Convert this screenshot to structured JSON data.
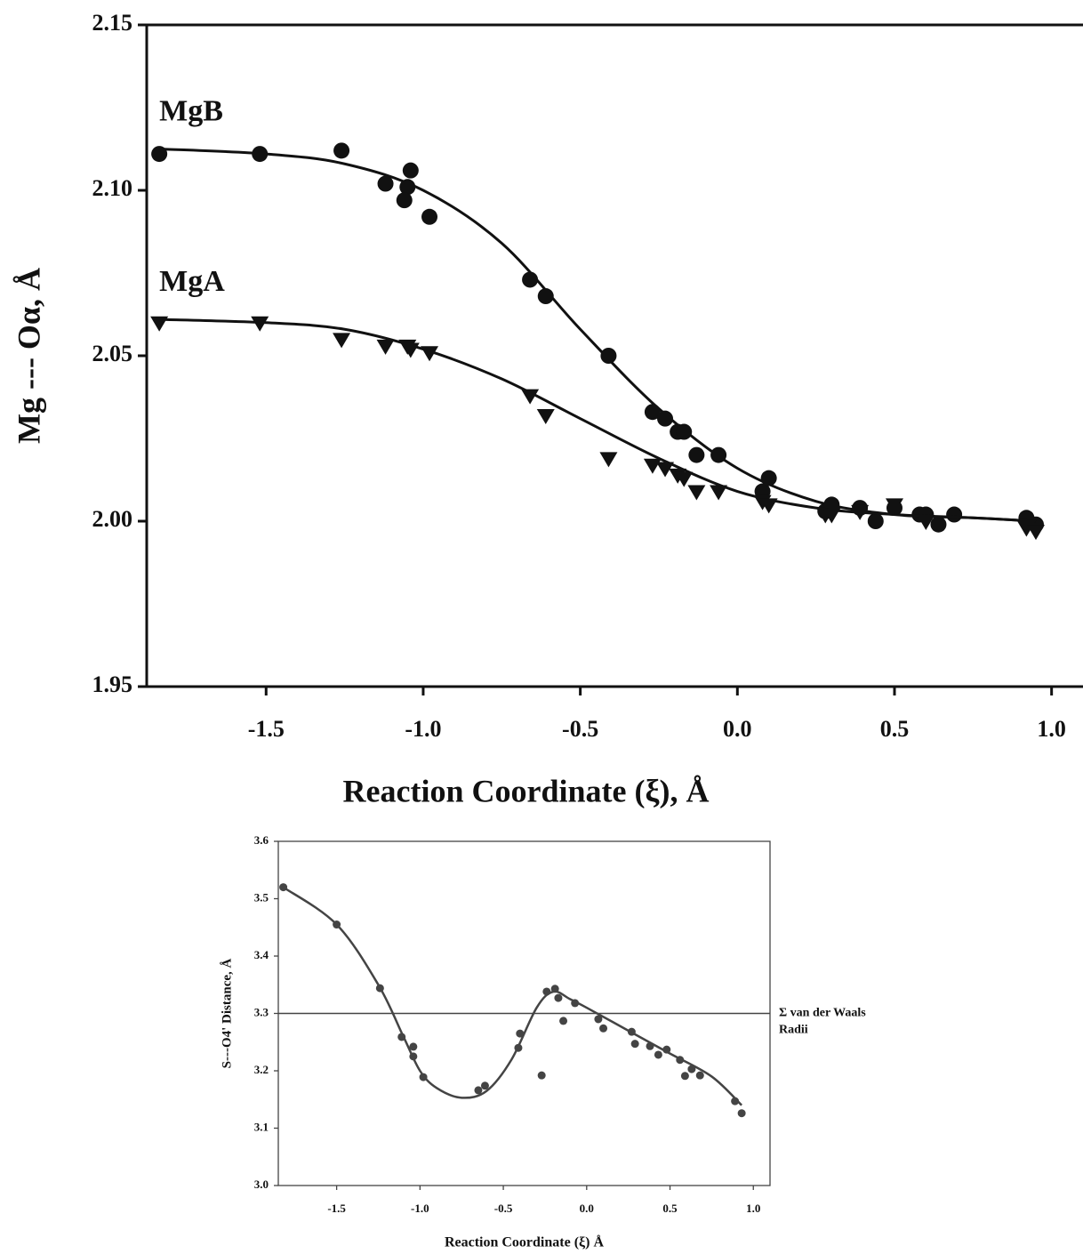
{
  "chart_data": [
    {
      "type": "scatter",
      "x_label": "Reaction Coordinate (ξ), Å",
      "y_label": "Mg --- Oα, Å",
      "xlim": [
        -1.88,
        1.1
      ],
      "ylim": [
        1.95,
        2.15
      ],
      "xticks": [
        {
          "value": -1.5,
          "label": "-1.5"
        },
        {
          "value": -1,
          "label": "-1.0"
        },
        -0.5,
        {
          "value": 0,
          "label": "0.0"
        },
        0.5,
        {
          "value": 1,
          "label": "1.0"
        }
      ],
      "yticks": [
        1.95,
        {
          "value": 2,
          "label": "2.00"
        },
        2.05,
        {
          "value": 2.1,
          "label": "2.10"
        },
        2.15
      ],
      "grid": false,
      "series": [
        {
          "name": "MgB",
          "marker": "circle",
          "color": "#111111",
          "x": [
            -1.84,
            -1.52,
            -1.26,
            -1.12,
            -1.05,
            -1.04,
            -1.06,
            -0.98,
            -0.66,
            -0.61,
            -0.41,
            -0.27,
            -0.23,
            -0.19,
            -0.17,
            -0.13,
            -0.06,
            0.08,
            0.1,
            0.28,
            0.3,
            0.39,
            0.44,
            0.5,
            0.58,
            0.6,
            0.64,
            0.69,
            0.92,
            0.95
          ],
          "values": [
            2.111,
            2.111,
            2.112,
            2.102,
            2.101,
            2.106,
            2.097,
            2.092,
            2.073,
            2.068,
            2.05,
            2.033,
            2.031,
            2.027,
            2.027,
            2.02,
            2.02,
            2.009,
            2.013,
            2.003,
            2.005,
            2.004,
            2.0,
            2.004,
            2.002,
            2.002,
            1.999,
            2.002,
            2.001,
            1.999
          ],
          "fit": {
            "x": [
              -1.84,
              -1.5,
              -1.25,
              -1.0,
              -0.75,
              -0.5,
              -0.25,
              0,
              0.25,
              0.5,
              0.75,
              0.95
            ],
            "values": [
              2.1125,
              2.111,
              2.108,
              2.1,
              2.084,
              2.058,
              2.034,
              2.016,
              2.006,
              2.002,
              2.001,
              2.0
            ]
          }
        },
        {
          "name": "MgA",
          "marker": "triangle-down",
          "color": "#111111",
          "x": [
            -1.84,
            -1.52,
            -1.26,
            -1.12,
            -1.05,
            -1.04,
            -0.98,
            -0.66,
            -0.61,
            -0.41,
            -0.27,
            -0.23,
            -0.19,
            -0.17,
            -0.13,
            -0.06,
            0.08,
            0.1,
            0.28,
            0.3,
            0.39,
            0.5,
            0.6,
            0.92,
            0.95
          ],
          "values": [
            2.06,
            2.06,
            2.055,
            2.053,
            2.053,
            2.052,
            2.051,
            2.038,
            2.032,
            2.019,
            2.017,
            2.016,
            2.014,
            2.013,
            2.009,
            2.009,
            2.006,
            2.005,
            2.002,
            2.002,
            2.003,
            2.005,
            2.0,
            1.998,
            1.997
          ],
          "fit": {
            "x": [
              -1.84,
              -1.5,
              -1.25,
              -1.0,
              -0.75,
              -0.5,
              -0.25,
              0,
              0.25,
              0.5,
              0.75,
              0.95
            ],
            "values": [
              2.061,
              2.06,
              2.058,
              2.052,
              2.043,
              2.031,
              2.019,
              2.009,
              2.004,
              2.002,
              2.001,
              2.0
            ]
          }
        }
      ]
    },
    {
      "type": "scatter",
      "x_label": "Reaction Coordinate (ξ) Å",
      "y_label": "S---O4' Distance, Å",
      "xlim": [
        -1.85,
        1.1
      ],
      "ylim": [
        3.0,
        3.6
      ],
      "xticks": [
        {
          "value": -1.5,
          "label": "-1.5"
        },
        {
          "value": -1,
          "label": "-1.0"
        },
        -0.5,
        {
          "value": 0,
          "label": "0.0"
        },
        0.5,
        {
          "value": 1,
          "label": "1.0"
        }
      ],
      "yticks": [
        {
          "value": 3,
          "label": "3.0"
        },
        3.1,
        3.2,
        3.3,
        3.4,
        3.5,
        3.6
      ],
      "grid": false,
      "reference_line": {
        "value": 3.3,
        "label": [
          "Σ van der Waals",
          "Radii"
        ]
      },
      "series": [
        {
          "marker": "circle",
          "color": "#444444",
          "x": [
            -1.82,
            -1.5,
            -1.24,
            -1.11,
            -1.04,
            -1.04,
            -0.98,
            -0.65,
            -0.61,
            -0.41,
            -0.4,
            -0.27,
            -0.24,
            -0.19,
            -0.17,
            -0.14,
            -0.07,
            0.07,
            0.1,
            0.27,
            0.29,
            0.38,
            0.43,
            0.48,
            0.56,
            0.59,
            0.63,
            0.68,
            0.89,
            0.93
          ],
          "values": [
            3.52,
            3.455,
            3.344,
            3.259,
            3.242,
            3.225,
            3.189,
            3.166,
            3.174,
            3.24,
            3.265,
            3.192,
            3.338,
            3.343,
            3.327,
            3.287,
            3.318,
            3.29,
            3.274,
            3.268,
            3.247,
            3.243,
            3.228,
            3.237,
            3.219,
            3.191,
            3.203,
            3.192,
            3.147,
            3.126
          ],
          "fit": {
            "x": [
              -1.82,
              -1.5,
              -1.25,
              -1.1,
              -1.0,
              -0.9,
              -0.75,
              -0.6,
              -0.45,
              -0.3,
              -0.2,
              -0.1,
              0,
              0.25,
              0.5,
              0.75,
              0.93
            ],
            "values": [
              3.52,
              3.455,
              3.35,
              3.26,
              3.2,
              3.17,
              3.153,
              3.165,
              3.22,
              3.31,
              3.338,
              3.325,
              3.31,
              3.27,
              3.23,
              3.19,
              3.14
            ]
          }
        }
      ]
    }
  ]
}
